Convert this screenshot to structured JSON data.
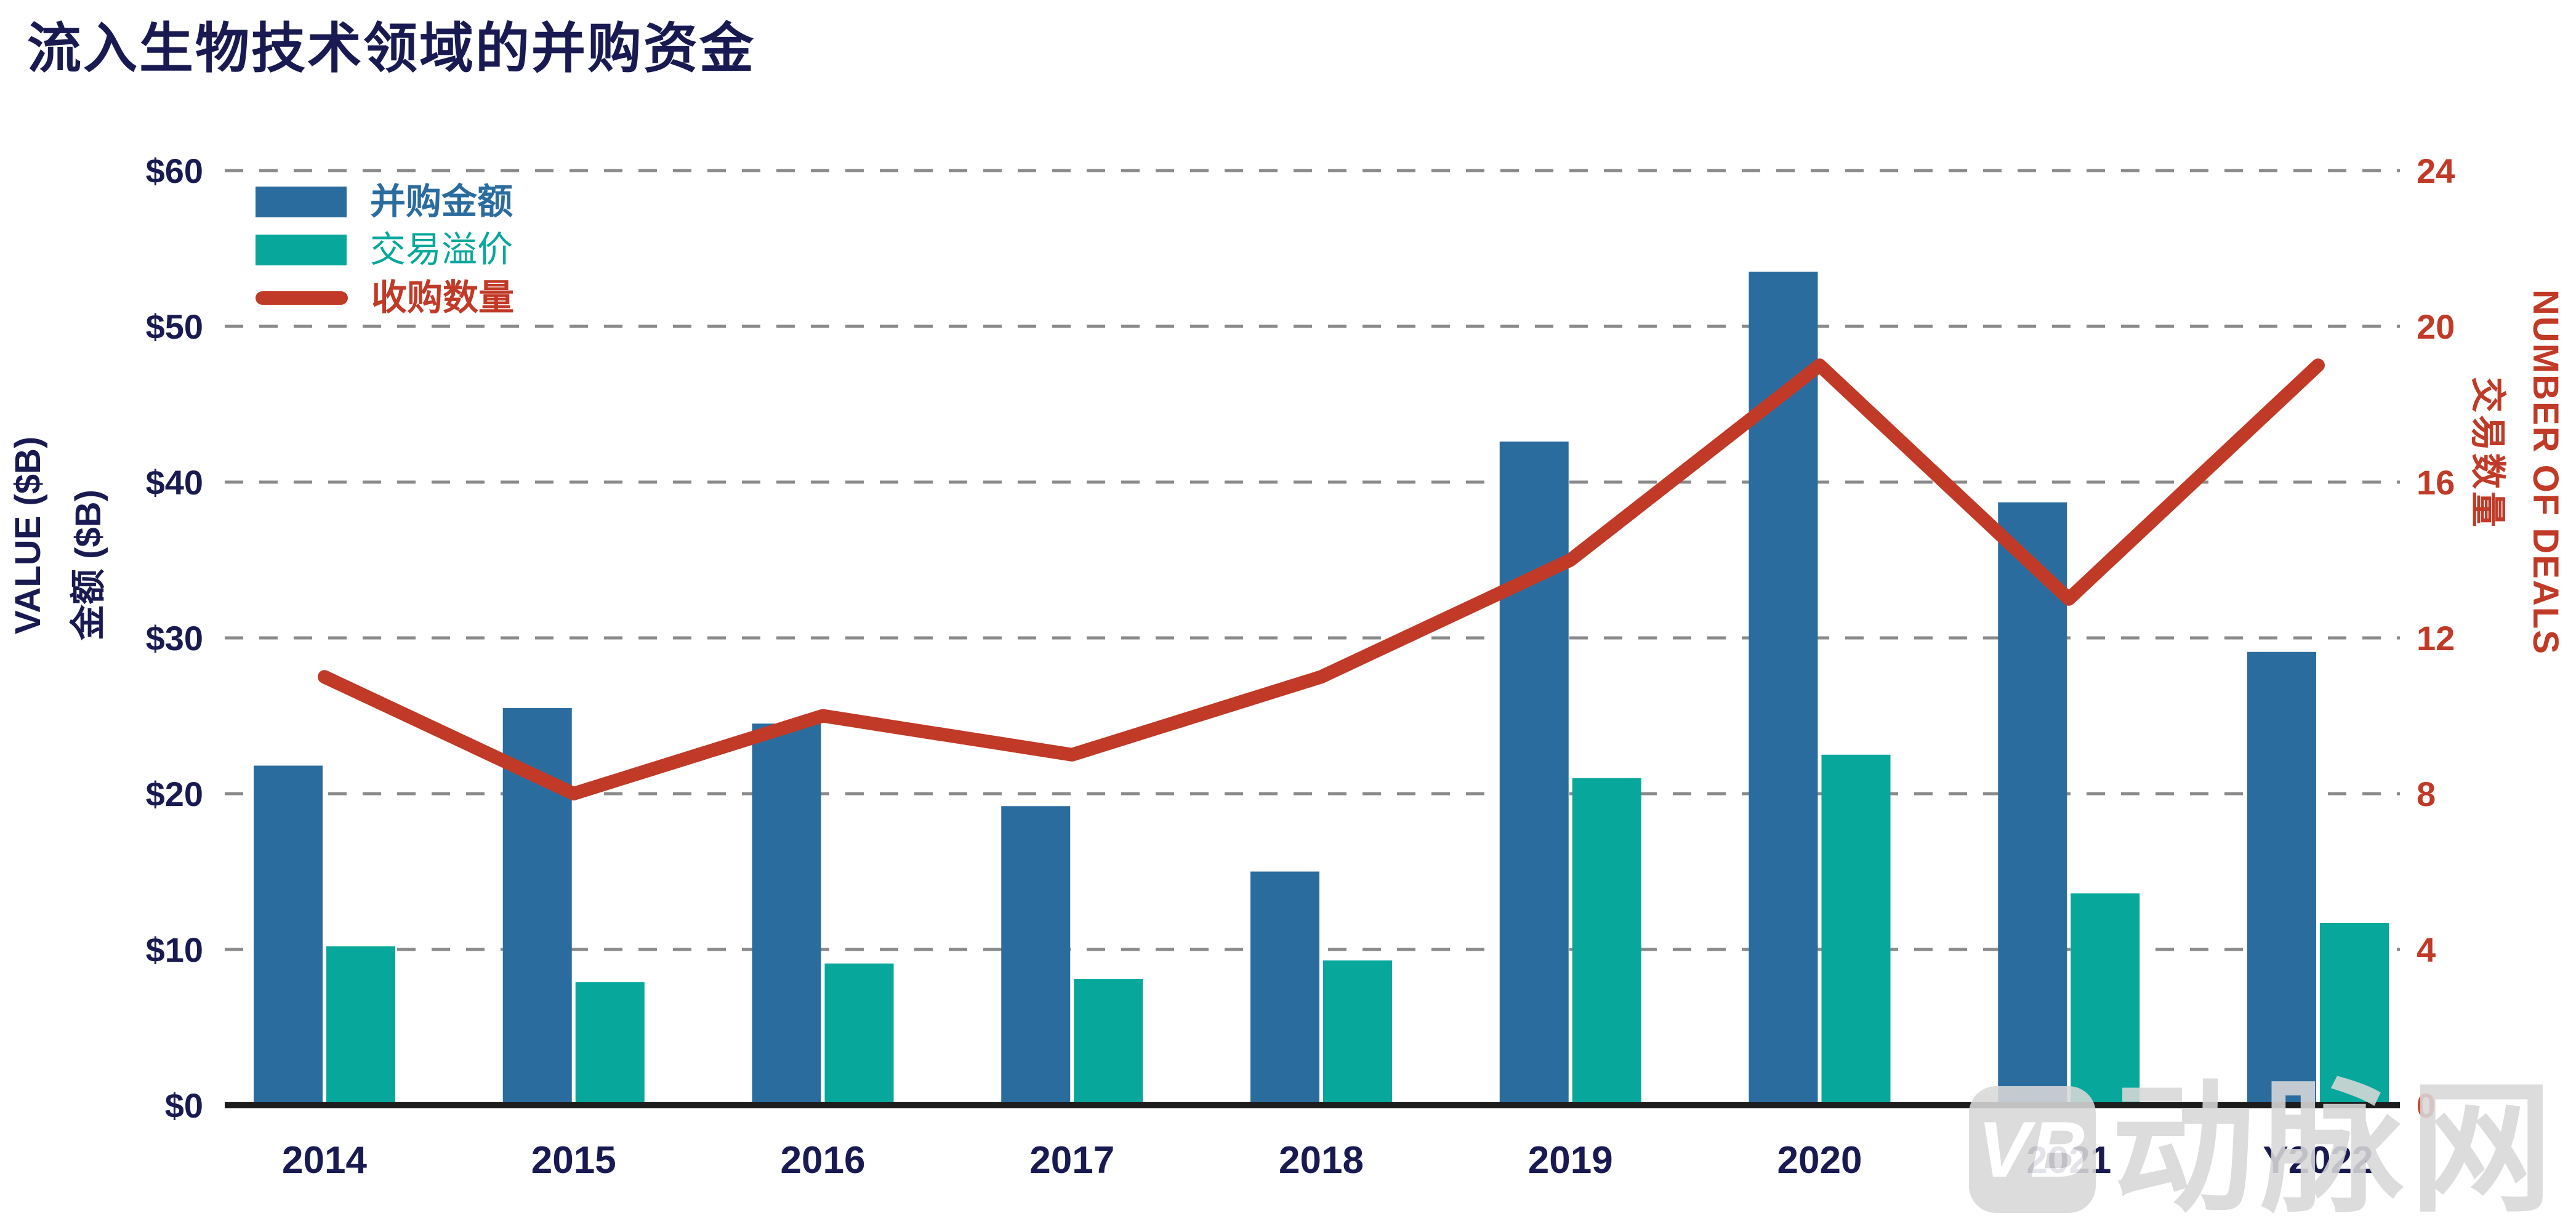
{
  "title": "流入生物技术领域的并购资金",
  "axes": {
    "left": {
      "title_en": "VALUE ($B)",
      "title_zh": "金额 ($B)",
      "ticks": [
        "$0",
        "$10",
        "$20",
        "$30",
        "$40",
        "$50",
        "$60"
      ],
      "range": [
        0,
        60
      ],
      "color": "#1A1A52"
    },
    "right": {
      "title_en": "NUMBER OF DEALS",
      "title_zh": "交易数量",
      "ticks": [
        "0",
        "4",
        "8",
        "12",
        "16",
        "20",
        "24"
      ],
      "range": [
        0,
        24
      ],
      "color": "#C13A27"
    }
  },
  "legend": [
    {
      "label": "并购金额",
      "type": "bar",
      "color": "#2B6C9F"
    },
    {
      "label": "交易溢价",
      "type": "bar",
      "color": "#07A79C"
    },
    {
      "label": "收购数量",
      "type": "line",
      "color": "#C13A27"
    }
  ],
  "chart_data": {
    "type": "bar+line",
    "categories": [
      "2014",
      "2015",
      "2016",
      "2017",
      "2018",
      "2019",
      "2020",
      "2021",
      "Y2022"
    ],
    "series": [
      {
        "name": "并购金额",
        "type": "bar",
        "axis": "left",
        "color": "#2B6C9F",
        "values": [
          21.8,
          25.5,
          24.5,
          19.2,
          15.0,
          42.6,
          53.5,
          38.7,
          29.1
        ]
      },
      {
        "name": "交易溢价",
        "type": "bar",
        "axis": "left",
        "color": "#07A79C",
        "values": [
          10.2,
          7.9,
          9.1,
          8.1,
          9.3,
          21.0,
          22.5,
          13.6,
          11.7
        ]
      },
      {
        "name": "收购数量",
        "type": "line",
        "axis": "right",
        "color": "#C13A27",
        "values": [
          11,
          8,
          10,
          9,
          11,
          14,
          19,
          13,
          19
        ]
      }
    ],
    "title": "流入生物技术领域的并购资金",
    "xlabel": "",
    "ylabel_left": "VALUE ($B) / 金额 ($B)",
    "ylabel_right": "NUMBER OF DEALS / 交易数量",
    "ylim_left": [
      0,
      60
    ],
    "ylim_right": [
      0,
      24
    ],
    "grid": "dashed horizontal",
    "legend_position": "inside top-left"
  },
  "colors": {
    "grid": "#8A8A8A",
    "baseline": "#1D1D1D",
    "tick_left": "#1A1A52",
    "tick_right": "#C13A27",
    "x_label": "#1A1A52",
    "watermark": "#D8D8D8"
  },
  "watermark": {
    "logo": "VB",
    "text": "动脉网"
  }
}
